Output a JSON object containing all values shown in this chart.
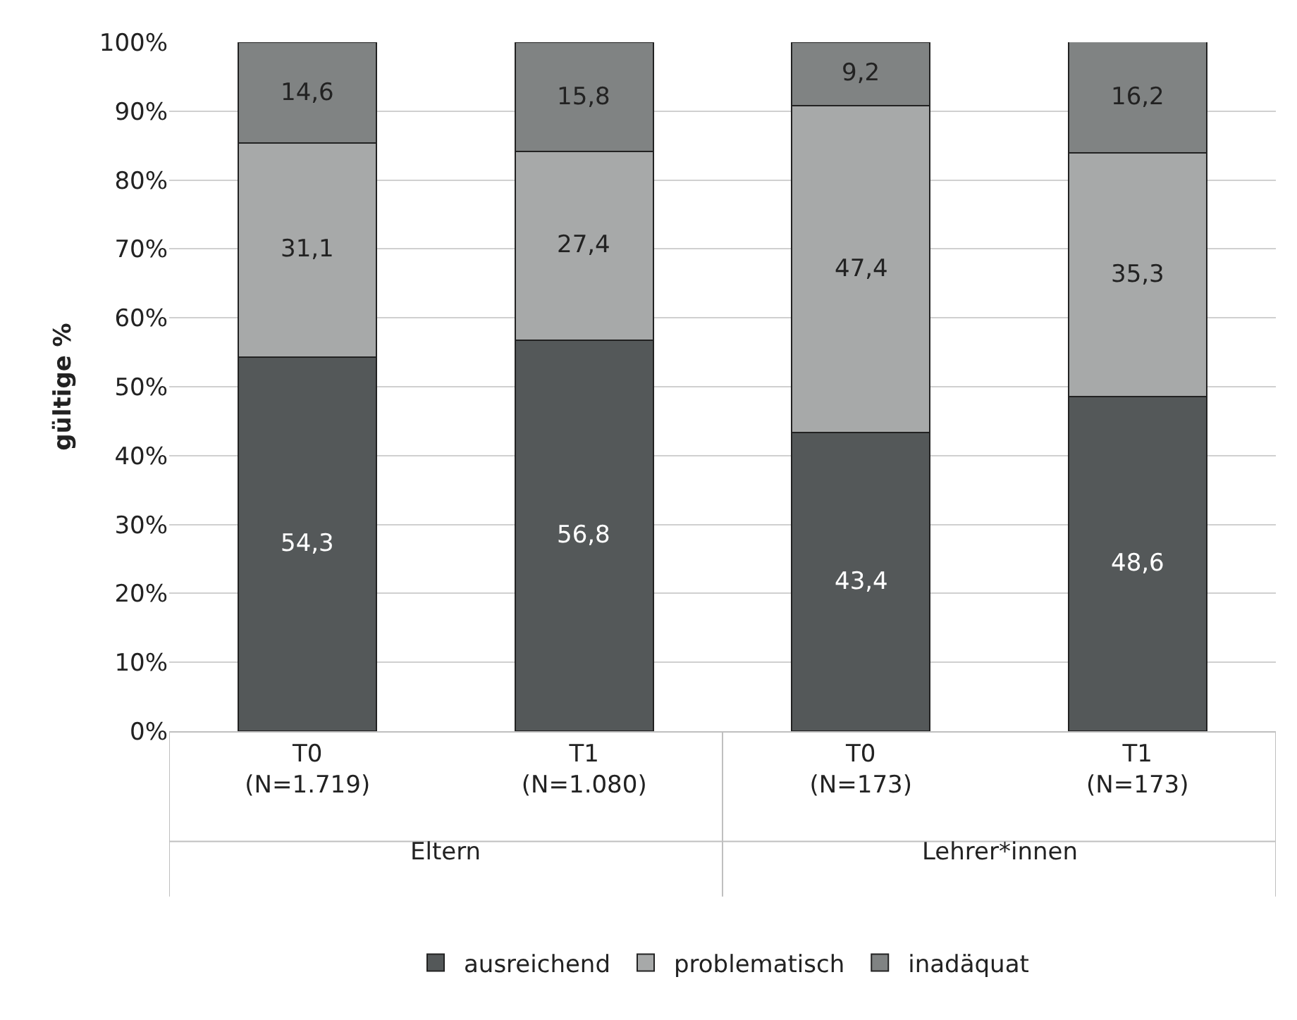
{
  "chart_data": {
    "type": "bar",
    "stacked": true,
    "ylabel": "gültige %",
    "categories": [
      "T0\n(N=1.719)",
      "T1\n(N=1.080)",
      "T0\n(N=173)",
      "T1\n(N=173)"
    ],
    "series": [
      {
        "name": "ausreichend",
        "color": "#545859",
        "values": [
          54.3,
          56.8,
          43.4,
          48.6
        ],
        "value_labels": [
          "54,3",
          "56,8",
          "43,4",
          "48,6"
        ]
      },
      {
        "name": "problematisch",
        "color": "#a7a9a9",
        "values": [
          31.1,
          27.4,
          47.4,
          35.3
        ],
        "value_labels": [
          "31,1",
          "27,4",
          "47,4",
          "35,3"
        ]
      },
      {
        "name": "inadäquat",
        "color": "#808383",
        "values": [
          14.6,
          15.8,
          9.2,
          16.2
        ],
        "value_labels": [
          "14,6",
          "15,8",
          "9,2",
          "16,2"
        ]
      }
    ],
    "annotations": [
      "Eltern",
      "Lehrer*innen"
    ],
    "ylim": [
      0,
      100
    ],
    "yticks": [
      {
        "value": 0,
        "label": "0%"
      },
      {
        "value": 10,
        "label": "10%"
      },
      {
        "value": 20,
        "label": "20%"
      },
      {
        "value": 30,
        "label": "30%"
      },
      {
        "value": 40,
        "label": "40%"
      },
      {
        "value": 50,
        "label": "50%"
      },
      {
        "value": 60,
        "label": "60%"
      },
      {
        "value": 70,
        "label": "70%"
      },
      {
        "value": 80,
        "label": "80%"
      },
      {
        "value": 90,
        "label": "90%"
      },
      {
        "value": 100,
        "label": "100%"
      }
    ],
    "grid": "y",
    "legend": "bottom"
  }
}
